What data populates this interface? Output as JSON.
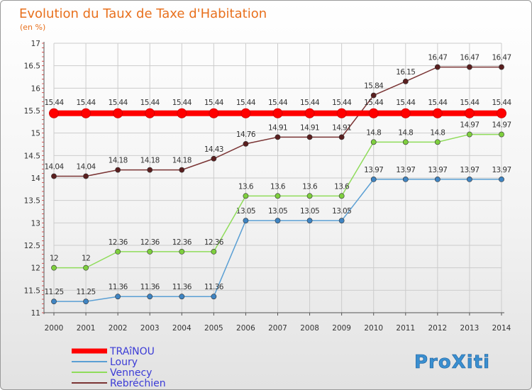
{
  "chart_data": {
    "type": "line",
    "title": "Evolution du Taux de Taxe d'Habitation",
    "ylabel": "(en %)",
    "xlabel": "",
    "ylim": [
      11,
      17
    ],
    "yticks": [
      "11",
      "11.5",
      "12",
      "12.5",
      "13",
      "13.5",
      "14",
      "14.5",
      "15",
      "15.5",
      "16",
      "16.5",
      "17"
    ],
    "categories": [
      "2000",
      "2001",
      "2002",
      "2003",
      "2004",
      "2005",
      "2006",
      "2007",
      "2008",
      "2009",
      "2010",
      "2011",
      "2012",
      "2013",
      "2014"
    ],
    "series": [
      {
        "name": "TRAîNOU",
        "color": "#ff0000",
        "values": [
          15.44,
          15.44,
          15.44,
          15.44,
          15.44,
          15.44,
          15.44,
          15.44,
          15.44,
          15.44,
          15.44,
          15.44,
          15.44,
          15.44,
          15.44
        ],
        "labels": [
          "15.44",
          "15.44",
          "15.44",
          "15.44",
          "15.44",
          "15.44",
          "15.44",
          "15.44",
          "15.44",
          "15.44",
          "15.44",
          "15.44",
          "15.44",
          "15.44",
          "15.44"
        ]
      },
      {
        "name": "Loury",
        "color": "#5a9fd4",
        "values": [
          11.25,
          11.25,
          11.36,
          11.36,
          11.36,
          11.36,
          13.05,
          13.05,
          13.05,
          13.05,
          13.97,
          13.97,
          13.97,
          13.97,
          13.97
        ],
        "labels": [
          "11.25",
          "11.25",
          "11.36",
          "11.36",
          "11.36",
          "11.36",
          "13.05",
          "13.05",
          "13.05",
          "13.05",
          "13.97",
          "13.97",
          "13.97",
          "13.97",
          "13.97"
        ]
      },
      {
        "name": "Vennecy",
        "color": "#8fdc5a",
        "values": [
          12,
          12,
          12.36,
          12.36,
          12.36,
          12.36,
          13.6,
          13.6,
          13.6,
          13.6,
          14.8,
          14.8,
          14.8,
          14.97,
          14.97
        ],
        "labels": [
          "12",
          "12",
          "12.36",
          "12.36",
          "12.36",
          "12.36",
          "13.6",
          "13.6",
          "13.6",
          "13.6",
          "14.8",
          "14.8",
          "14.8",
          "14.97",
          "14.97"
        ]
      },
      {
        "name": "Rebréchien",
        "color": "#7a3434",
        "values": [
          14.04,
          14.04,
          14.18,
          14.18,
          14.18,
          14.43,
          14.76,
          14.91,
          14.91,
          14.91,
          15.84,
          16.15,
          16.47,
          16.47,
          16.47
        ],
        "labels": [
          "14.04",
          "14.04",
          "14.18",
          "14.18",
          "14.18",
          "14.43",
          "14.76",
          "14.91",
          "14.91",
          "14.91",
          "15.84",
          "16.15",
          "16.47",
          "16.47",
          "16.47"
        ]
      }
    ],
    "legend": "bottom-left"
  },
  "logo": {
    "text": "ProXiti"
  }
}
